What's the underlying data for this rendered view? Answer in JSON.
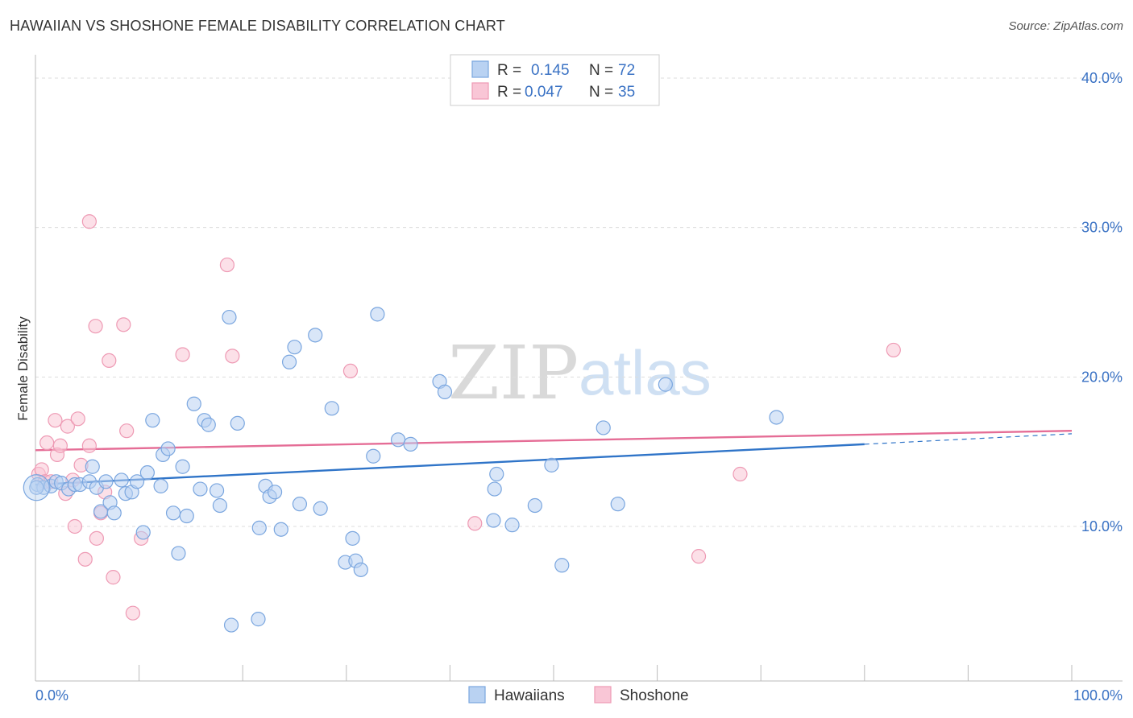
{
  "header": {
    "title": "HAWAIIAN VS SHOSHONE FEMALE DISABILITY CORRELATION CHART",
    "source": "Source: ZipAtlas.com"
  },
  "watermark": {
    "part1": "ZIP",
    "part2": "atlas"
  },
  "legend": {
    "r_label": "R =",
    "n_label": "N =",
    "rows": [
      {
        "r": "0.145",
        "n": "72"
      },
      {
        "r": "0.047",
        "n": "35"
      }
    ]
  },
  "bottom_legend": {
    "series1": "Hawaiians",
    "series2": "Shoshone"
  },
  "colors": {
    "blue_fill": "#b9d2f2",
    "blue_stroke": "#7aa6df",
    "blue_line": "#2f74c8",
    "pink_fill": "#f9c6d6",
    "pink_stroke": "#ee9ab4",
    "pink_line": "#e56d96",
    "grid": "#dddddd",
    "axis_text": "#3a72c4"
  },
  "chart_data": {
    "type": "scatter",
    "title": "HAWAIIAN VS SHOSHONE FEMALE DISABILITY CORRELATION CHART",
    "xlabel": "",
    "ylabel": "Female Disability",
    "xlim": [
      0,
      100
    ],
    "ylim": [
      0,
      40
    ],
    "x_tick_labels": [
      "0.0%",
      "100.0%"
    ],
    "y_ticks": [
      10,
      20,
      30,
      40
    ],
    "y_tick_labels": [
      "10.0%",
      "20.0%",
      "30.0%",
      "40.0%"
    ],
    "series": [
      {
        "name": "Hawaiians",
        "r": 0.145,
        "n": 72,
        "trend": {
          "x0": 0,
          "y0": 12.8,
          "x1": 80,
          "y1": 15.5,
          "dash_to_x": 100,
          "dash_to_y": 16.2
        },
        "points": [
          [
            0.2,
            12.8
          ],
          [
            0.8,
            12.6
          ],
          [
            1.5,
            12.7
          ],
          [
            2.0,
            13.0
          ],
          [
            2.5,
            12.9
          ],
          [
            3.2,
            12.5
          ],
          [
            3.8,
            12.8
          ],
          [
            4.3,
            12.8
          ],
          [
            5.2,
            13.0
          ],
          [
            5.5,
            14.0
          ],
          [
            5.9,
            12.6
          ],
          [
            6.3,
            11.0
          ],
          [
            6.8,
            13.0
          ],
          [
            7.2,
            11.6
          ],
          [
            7.6,
            10.9
          ],
          [
            8.3,
            13.1
          ],
          [
            8.7,
            12.2
          ],
          [
            9.3,
            12.3
          ],
          [
            9.8,
            13.0
          ],
          [
            10.4,
            9.6
          ],
          [
            10.8,
            13.6
          ],
          [
            11.3,
            17.1
          ],
          [
            12.1,
            12.7
          ],
          [
            12.3,
            14.8
          ],
          [
            12.8,
            15.2
          ],
          [
            13.3,
            10.9
          ],
          [
            13.8,
            8.2
          ],
          [
            14.2,
            14.0
          ],
          [
            14.6,
            10.7
          ],
          [
            15.3,
            18.2
          ],
          [
            15.9,
            12.5
          ],
          [
            16.3,
            17.1
          ],
          [
            16.7,
            16.8
          ],
          [
            17.5,
            12.4
          ],
          [
            17.8,
            11.4
          ],
          [
            18.7,
            24.0
          ],
          [
            18.9,
            3.4
          ],
          [
            19.5,
            16.9
          ],
          [
            21.5,
            3.8
          ],
          [
            21.6,
            9.9
          ],
          [
            22.2,
            12.7
          ],
          [
            22.6,
            12.0
          ],
          [
            23.1,
            12.3
          ],
          [
            23.7,
            9.8
          ],
          [
            24.5,
            21.0
          ],
          [
            25.0,
            22.0
          ],
          [
            25.5,
            11.5
          ],
          [
            27.0,
            22.8
          ],
          [
            27.5,
            11.2
          ],
          [
            28.6,
            17.9
          ],
          [
            29.9,
            7.6
          ],
          [
            30.6,
            9.2
          ],
          [
            30.9,
            7.7
          ],
          [
            31.4,
            7.1
          ],
          [
            32.6,
            14.7
          ],
          [
            33.0,
            24.2
          ],
          [
            35.0,
            15.8
          ],
          [
            36.2,
            15.5
          ],
          [
            39.0,
            19.7
          ],
          [
            39.5,
            19.0
          ],
          [
            44.2,
            10.4
          ],
          [
            44.5,
            13.5
          ],
          [
            44.3,
            12.5
          ],
          [
            46.0,
            10.1
          ],
          [
            48.2,
            11.4
          ],
          [
            49.8,
            14.1
          ],
          [
            50.8,
            7.4
          ],
          [
            54.8,
            16.6
          ],
          [
            56.2,
            11.5
          ],
          [
            60.8,
            19.5
          ],
          [
            71.5,
            17.3
          ],
          [
            0.1,
            12.6
          ]
        ]
      },
      {
        "name": "Shoshone",
        "r": 0.047,
        "n": 35,
        "trend": {
          "x0": 0,
          "y0": 15.1,
          "x1": 100,
          "y1": 16.4
        },
        "points": [
          [
            0.3,
            13.5
          ],
          [
            0.6,
            13.8
          ],
          [
            0.9,
            13.0
          ],
          [
            1.1,
            15.6
          ],
          [
            1.5,
            13.0
          ],
          [
            1.9,
            17.1
          ],
          [
            2.1,
            14.8
          ],
          [
            2.4,
            15.4
          ],
          [
            2.9,
            12.2
          ],
          [
            3.1,
            16.7
          ],
          [
            3.6,
            13.1
          ],
          [
            3.8,
            10.0
          ],
          [
            4.1,
            17.2
          ],
          [
            4.4,
            14.1
          ],
          [
            4.8,
            7.8
          ],
          [
            5.2,
            15.4
          ],
          [
            5.8,
            23.4
          ],
          [
            5.9,
            9.2
          ],
          [
            6.3,
            10.9
          ],
          [
            6.7,
            12.3
          ],
          [
            7.1,
            21.1
          ],
          [
            7.5,
            6.6
          ],
          [
            8.5,
            23.5
          ],
          [
            8.8,
            16.4
          ],
          [
            9.4,
            4.2
          ],
          [
            10.2,
            9.2
          ],
          [
            14.2,
            21.5
          ],
          [
            18.5,
            27.5
          ],
          [
            19.0,
            21.4
          ],
          [
            30.4,
            20.4
          ],
          [
            42.4,
            10.2
          ],
          [
            5.2,
            30.4
          ],
          [
            64.0,
            8.0
          ],
          [
            68.0,
            13.5
          ],
          [
            82.8,
            21.8
          ]
        ]
      }
    ]
  }
}
